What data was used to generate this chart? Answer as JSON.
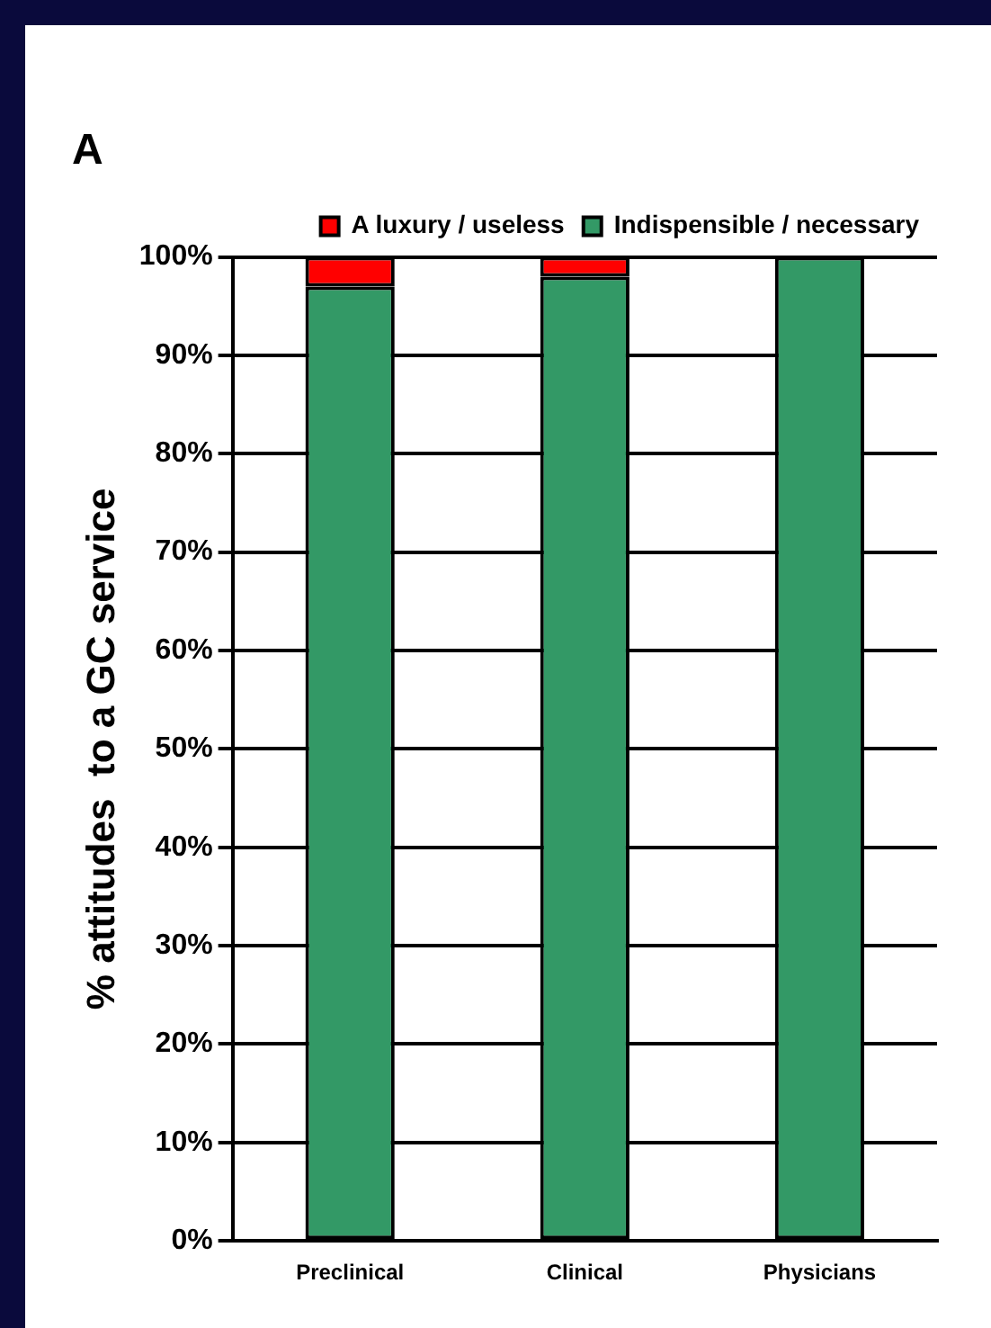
{
  "chart_data": {
    "type": "bar",
    "title": "A",
    "ylabel": "% attitudes  to a GC service",
    "categories": [
      "Preclinical",
      "Clinical",
      "Physicians"
    ],
    "stacked": true,
    "series": [
      {
        "name": "Indispensible / necessary",
        "color": "#339966",
        "values": [
          97,
          98,
          100
        ]
      },
      {
        "name": "A luxury / useless",
        "color": "#ff0000",
        "values": [
          3,
          2,
          0
        ]
      }
    ],
    "ylim": [
      0,
      100
    ],
    "yticks": [
      {
        "value": 0,
        "label": "0%"
      },
      {
        "value": 10,
        "label": "10%"
      },
      {
        "value": 20,
        "label": "20%"
      },
      {
        "value": 30,
        "label": "30%"
      },
      {
        "value": 40,
        "label": "40%"
      },
      {
        "value": 50,
        "label": "50%"
      },
      {
        "value": 60,
        "label": "60%"
      },
      {
        "value": 70,
        "label": "70%"
      },
      {
        "value": 80,
        "label": "80%"
      },
      {
        "value": 90,
        "label": "90%"
      },
      {
        "value": 100,
        "label": "100%"
      }
    ],
    "grid": "y",
    "legend": "top right"
  }
}
